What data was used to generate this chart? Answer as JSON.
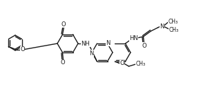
{
  "background_color": "#ffffff",
  "line_color": "#1a1a1a",
  "lw": 1.0,
  "figsize": [
    3.04,
    1.26
  ],
  "dpi": 100,
  "xlim": [
    0,
    304
  ],
  "ylim": [
    0,
    126
  ]
}
